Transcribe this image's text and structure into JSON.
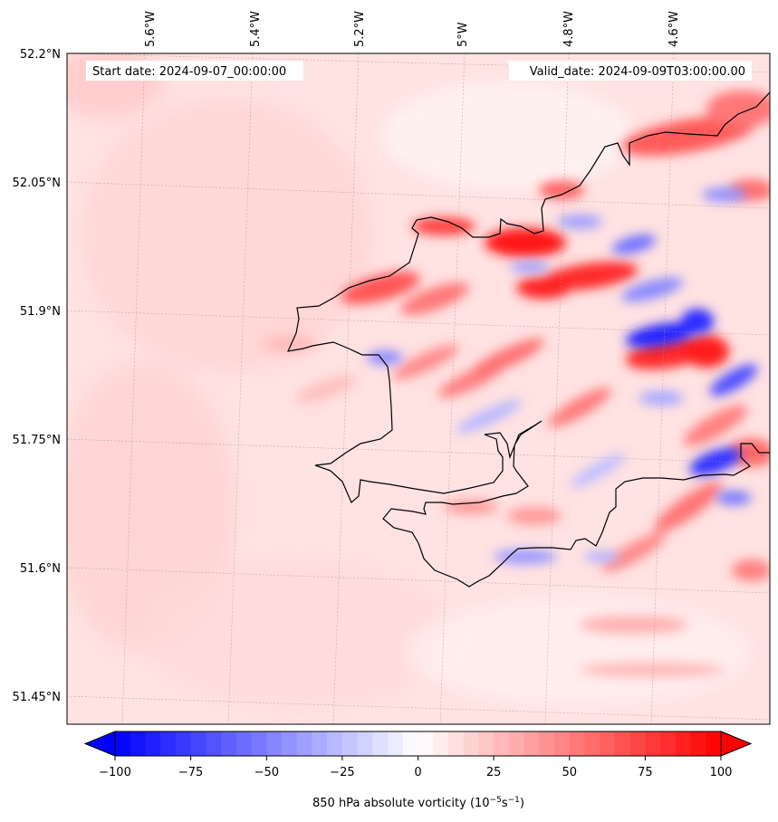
{
  "header": {
    "start_date": "Start date: 2024-09-07_00:00:00",
    "valid_date": "Valid_date: 2024-09-09T03:00:00.00"
  },
  "map": {
    "lon_labels": [
      "5.6°W",
      "5.4°W",
      "5.2°W",
      "5°W",
      "4.8°W",
      "4.6°W"
    ],
    "lat_labels": [
      "52.2°N",
      "52.05°N",
      "51.9°N",
      "51.75°N",
      "51.6°N",
      "51.45°N"
    ],
    "background_color": "#ffe2e2",
    "coastline_color": "#000000"
  },
  "colorbar": {
    "label": "850 hPa absolute vorticity (10",
    "label_exp1": "−5",
    "label_mid": "s",
    "label_exp2": "−1",
    "label_end": ")",
    "ticks": [
      "−100",
      "−75",
      "−50",
      "−25",
      "0",
      "25",
      "50",
      "75",
      "100"
    ],
    "min_color": "#0000ff",
    "mid_color": "#ffffff",
    "max_color": "#ff0000"
  }
}
